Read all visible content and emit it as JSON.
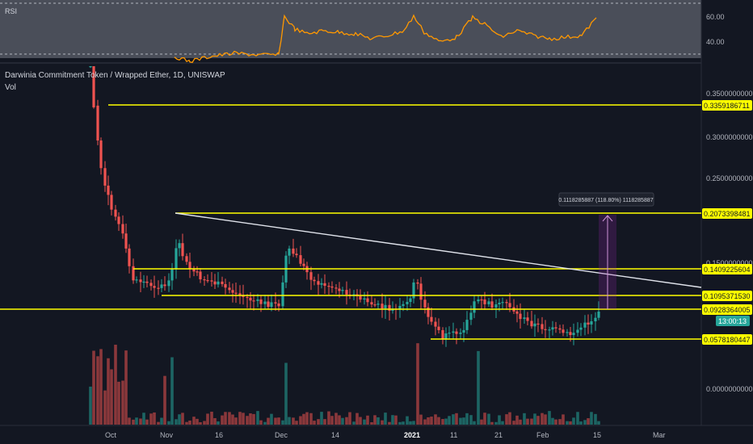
{
  "header": {
    "title": "Darwinia Commitment Token / Wrapped Ether, 1D, UNISWAP",
    "vol_label": "Vol",
    "rsi_label": "RSI"
  },
  "colors": {
    "background": "#131722",
    "up": "#26a69a",
    "down": "#ef5350",
    "level": "#ffff00",
    "trendline": "#ffffff",
    "rsi": "#ff9800",
    "measure": "#9c27b0"
  },
  "chart_data": [
    {
      "type": "candlestick",
      "pair": "Darwinia Commitment Token / Wrapped Ether",
      "interval": "1D",
      "exchange": "UNISWAP",
      "x_tick_labels": [
        "Oct",
        "Nov",
        "16",
        "Dec",
        "14",
        "2021",
        "11",
        "21",
        "Feb",
        "15",
        "Mar"
      ],
      "y_tick_labels": [
        "0.3500000000",
        "0.3000000000",
        "0.2500000000",
        "0.1500000000",
        "0.0000000000"
      ],
      "y_range": [
        0,
        0.4
      ],
      "horizontal_levels": [
        "0.3359186711",
        "0.2073398481",
        "0.1409225604",
        "0.1095371530",
        "0.0928364005",
        "0.0578180447"
      ],
      "last_price": "0.0928364005",
      "countdown": "13:00:13",
      "measure_label": "0.1118285887 (118.80%) 1118285887",
      "trendline": "descending trendline drawn from the November high at 0.2073398481"
    },
    {
      "type": "line",
      "name": "RSI",
      "y_tick_labels": [
        "60.00",
        "40.00"
      ],
      "y_range": [
        30,
        70
      ]
    }
  ]
}
